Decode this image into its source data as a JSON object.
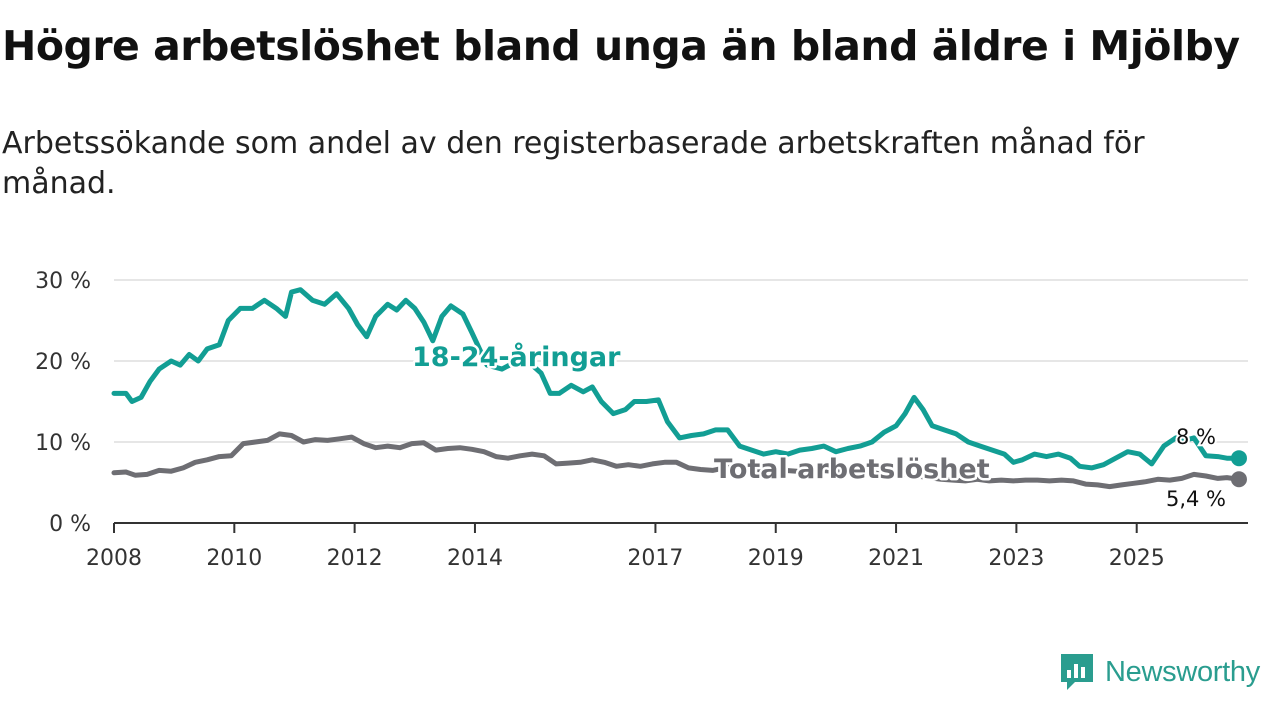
{
  "title": "Högre arbetslöshet bland unga än bland äldre i Mjölby",
  "subtitle": "Arbetssökande som andel av den registerbaserade arbetskraften månad för månad.",
  "brand": "Newsworthy",
  "colors": {
    "youth": "#129e94",
    "total": "#6e6e73",
    "grid": "#dddddd",
    "axis": "#333333"
  },
  "chart_data": {
    "type": "line",
    "title": "Högre arbetslöshet bland unga än bland äldre i Mjölby",
    "xlabel": "",
    "ylabel": "",
    "xlim": [
      2008.0,
      2026.85
    ],
    "ylim": [
      0,
      30
    ],
    "grid": true,
    "y_ticks": [
      {
        "value": 0,
        "label": "0 %"
      },
      {
        "value": 10,
        "label": "10 %"
      },
      {
        "value": 20,
        "label": "20 %"
      },
      {
        "value": 30,
        "label": "30 %"
      }
    ],
    "x_ticks": [
      {
        "value": 2008,
        "label": "2008"
      },
      {
        "value": 2010,
        "label": "2010"
      },
      {
        "value": 2012,
        "label": "2012"
      },
      {
        "value": 2014,
        "label": "2014"
      },
      {
        "value": 2017,
        "label": "2017"
      },
      {
        "value": 2019,
        "label": "2019"
      },
      {
        "value": 2021,
        "label": "2021"
      },
      {
        "value": 2023,
        "label": "2023"
      },
      {
        "value": 2025,
        "label": "2025"
      }
    ],
    "series": [
      {
        "name": "18-24-åringar",
        "key": "youth",
        "label": "18-24-åringar",
        "end_label": "8 %",
        "points": [
          [
            2008.0,
            16.0
          ],
          [
            2008.2,
            16.0
          ],
          [
            2008.3,
            15.0
          ],
          [
            2008.45,
            15.5
          ],
          [
            2008.6,
            17.5
          ],
          [
            2008.75,
            19.0
          ],
          [
            2008.95,
            20.0
          ],
          [
            2009.1,
            19.5
          ],
          [
            2009.25,
            20.8
          ],
          [
            2009.4,
            20.0
          ],
          [
            2009.55,
            21.5
          ],
          [
            2009.75,
            22.0
          ],
          [
            2009.9,
            25.0
          ],
          [
            2010.1,
            26.5
          ],
          [
            2010.3,
            26.5
          ],
          [
            2010.5,
            27.5
          ],
          [
            2010.7,
            26.5
          ],
          [
            2010.85,
            25.5
          ],
          [
            2010.95,
            28.5
          ],
          [
            2011.1,
            28.8
          ],
          [
            2011.3,
            27.5
          ],
          [
            2011.5,
            27.0
          ],
          [
            2011.7,
            28.3
          ],
          [
            2011.9,
            26.5
          ],
          [
            2012.05,
            24.5
          ],
          [
            2012.2,
            23.0
          ],
          [
            2012.35,
            25.5
          ],
          [
            2012.55,
            27.0
          ],
          [
            2012.7,
            26.3
          ],
          [
            2012.85,
            27.5
          ],
          [
            2013.0,
            26.5
          ],
          [
            2013.15,
            24.8
          ],
          [
            2013.3,
            22.5
          ],
          [
            2013.45,
            25.5
          ],
          [
            2013.6,
            26.8
          ],
          [
            2013.8,
            25.8
          ],
          [
            2013.95,
            23.5
          ],
          [
            2014.2,
            19.5
          ],
          [
            2014.45,
            19.0
          ],
          [
            2014.7,
            20.0
          ],
          [
            2014.95,
            19.5
          ],
          [
            2015.1,
            18.5
          ],
          [
            2015.25,
            16.0
          ],
          [
            2015.4,
            16.0
          ],
          [
            2015.6,
            17.0
          ],
          [
            2015.8,
            16.2
          ],
          [
            2015.95,
            16.8
          ],
          [
            2016.1,
            15.0
          ],
          [
            2016.3,
            13.5
          ],
          [
            2016.5,
            14.0
          ],
          [
            2016.65,
            15.0
          ],
          [
            2016.85,
            15.0
          ],
          [
            2017.05,
            15.2
          ],
          [
            2017.2,
            12.5
          ],
          [
            2017.4,
            10.5
          ],
          [
            2017.6,
            10.8
          ],
          [
            2017.8,
            11.0
          ],
          [
            2018.0,
            11.5
          ],
          [
            2018.2,
            11.5
          ],
          [
            2018.4,
            9.5
          ],
          [
            2018.6,
            9.0
          ],
          [
            2018.8,
            8.5
          ],
          [
            2019.0,
            8.8
          ],
          [
            2019.2,
            8.5
          ],
          [
            2019.4,
            9.0
          ],
          [
            2019.6,
            9.2
          ],
          [
            2019.8,
            9.5
          ],
          [
            2020.0,
            8.8
          ],
          [
            2020.2,
            9.2
          ],
          [
            2020.4,
            9.5
          ],
          [
            2020.6,
            10.0
          ],
          [
            2020.8,
            11.2
          ],
          [
            2021.0,
            12.0
          ],
          [
            2021.15,
            13.5
          ],
          [
            2021.3,
            15.5
          ],
          [
            2021.45,
            14.0
          ],
          [
            2021.6,
            12.0
          ],
          [
            2021.8,
            11.5
          ],
          [
            2022.0,
            11.0
          ],
          [
            2022.2,
            10.0
          ],
          [
            2022.4,
            9.5
          ],
          [
            2022.6,
            9.0
          ],
          [
            2022.8,
            8.5
          ],
          [
            2022.95,
            7.5
          ],
          [
            2023.1,
            7.8
          ],
          [
            2023.3,
            8.5
          ],
          [
            2023.5,
            8.2
          ],
          [
            2023.7,
            8.5
          ],
          [
            2023.9,
            8.0
          ],
          [
            2024.05,
            7.0
          ],
          [
            2024.25,
            6.8
          ],
          [
            2024.45,
            7.2
          ],
          [
            2024.65,
            8.0
          ],
          [
            2024.85,
            8.8
          ],
          [
            2025.05,
            8.5
          ],
          [
            2025.25,
            7.3
          ],
          [
            2025.45,
            9.5
          ],
          [
            2025.65,
            10.5
          ],
          [
            2025.8,
            10.2
          ],
          [
            2025.95,
            10.5
          ],
          [
            2026.15,
            8.3
          ],
          [
            2026.35,
            8.2
          ],
          [
            2026.5,
            8.0
          ],
          [
            2026.7,
            8.0
          ]
        ]
      },
      {
        "name": "Total arbetslöshet",
        "key": "total",
        "label": "Total arbetslöshet",
        "end_label": "5,4 %",
        "points": [
          [
            2008.0,
            6.2
          ],
          [
            2008.2,
            6.3
          ],
          [
            2008.35,
            5.9
          ],
          [
            2008.55,
            6.0
          ],
          [
            2008.75,
            6.5
          ],
          [
            2008.95,
            6.4
          ],
          [
            2009.15,
            6.8
          ],
          [
            2009.35,
            7.5
          ],
          [
            2009.55,
            7.8
          ],
          [
            2009.75,
            8.2
          ],
          [
            2009.95,
            8.3
          ],
          [
            2010.15,
            9.8
          ],
          [
            2010.35,
            10.0
          ],
          [
            2010.55,
            10.2
          ],
          [
            2010.75,
            11.0
          ],
          [
            2010.95,
            10.8
          ],
          [
            2011.15,
            10.0
          ],
          [
            2011.35,
            10.3
          ],
          [
            2011.55,
            10.2
          ],
          [
            2011.75,
            10.4
          ],
          [
            2011.95,
            10.6
          ],
          [
            2012.15,
            9.8
          ],
          [
            2012.35,
            9.3
          ],
          [
            2012.55,
            9.5
          ],
          [
            2012.75,
            9.3
          ],
          [
            2012.95,
            9.8
          ],
          [
            2013.15,
            9.9
          ],
          [
            2013.35,
            9.0
          ],
          [
            2013.55,
            9.2
          ],
          [
            2013.75,
            9.3
          ],
          [
            2013.95,
            9.1
          ],
          [
            2014.15,
            8.8
          ],
          [
            2014.35,
            8.2
          ],
          [
            2014.55,
            8.0
          ],
          [
            2014.75,
            8.3
          ],
          [
            2014.95,
            8.5
          ],
          [
            2015.15,
            8.3
          ],
          [
            2015.35,
            7.3
          ],
          [
            2015.55,
            7.4
          ],
          [
            2015.75,
            7.5
          ],
          [
            2015.95,
            7.8
          ],
          [
            2016.15,
            7.5
          ],
          [
            2016.35,
            7.0
          ],
          [
            2016.55,
            7.2
          ],
          [
            2016.75,
            7.0
          ],
          [
            2016.95,
            7.3
          ],
          [
            2017.15,
            7.5
          ],
          [
            2017.35,
            7.5
          ],
          [
            2017.55,
            6.8
          ],
          [
            2017.75,
            6.6
          ],
          [
            2017.95,
            6.5
          ],
          [
            2018.15,
            6.8
          ],
          [
            2018.35,
            7.0
          ],
          [
            2018.55,
            6.8
          ],
          [
            2018.75,
            6.5
          ],
          [
            2018.95,
            6.3
          ],
          [
            2019.15,
            6.5
          ],
          [
            2019.35,
            6.4
          ],
          [
            2019.55,
            6.3
          ],
          [
            2019.75,
            6.5
          ],
          [
            2019.95,
            6.4
          ],
          [
            2020.15,
            6.3
          ],
          [
            2020.35,
            6.2
          ],
          [
            2020.55,
            6.4
          ],
          [
            2020.75,
            6.0
          ],
          [
            2020.95,
            5.9
          ],
          [
            2021.15,
            6.0
          ],
          [
            2021.35,
            5.8
          ],
          [
            2021.55,
            5.6
          ],
          [
            2021.75,
            5.4
          ],
          [
            2021.95,
            5.3
          ],
          [
            2022.15,
            5.2
          ],
          [
            2022.35,
            5.4
          ],
          [
            2022.55,
            5.2
          ],
          [
            2022.75,
            5.3
          ],
          [
            2022.95,
            5.2
          ],
          [
            2023.15,
            5.3
          ],
          [
            2023.35,
            5.3
          ],
          [
            2023.55,
            5.2
          ],
          [
            2023.75,
            5.3
          ],
          [
            2023.95,
            5.2
          ],
          [
            2024.15,
            4.8
          ],
          [
            2024.35,
            4.7
          ],
          [
            2024.55,
            4.5
          ],
          [
            2024.75,
            4.7
          ],
          [
            2024.95,
            4.9
          ],
          [
            2025.15,
            5.1
          ],
          [
            2025.35,
            5.4
          ],
          [
            2025.55,
            5.3
          ],
          [
            2025.75,
            5.5
          ],
          [
            2025.95,
            6.0
          ],
          [
            2026.15,
            5.8
          ],
          [
            2026.35,
            5.5
          ],
          [
            2026.5,
            5.6
          ],
          [
            2026.7,
            5.4
          ]
        ]
      }
    ]
  }
}
